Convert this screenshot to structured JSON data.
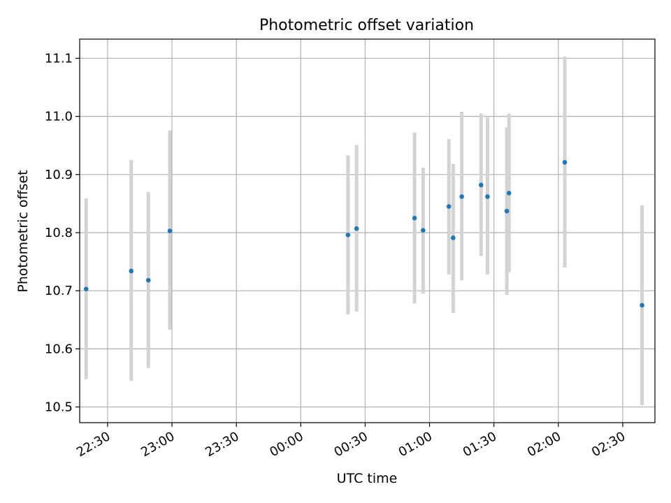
{
  "chart_data": {
    "type": "scatter",
    "title": "Photometric offset variation",
    "xlabel": "UTC time",
    "ylabel": "Photometric offset",
    "x_axis_kind": "time",
    "xlim": [
      "22:17",
      "02:45"
    ],
    "ylim": [
      10.473,
      11.133
    ],
    "x_ticks": [
      "22:30",
      "23:00",
      "23:30",
      "00:00",
      "00:30",
      "01:00",
      "01:30",
      "02:00",
      "02:30"
    ],
    "y_ticks": [
      "10.5",
      "10.6",
      "10.7",
      "10.8",
      "10.9",
      "11.0",
      "11.1"
    ],
    "y_tick_values": [
      10.5,
      10.6,
      10.7,
      10.8,
      10.9,
      11.0,
      11.1
    ],
    "grid": true,
    "colors": {
      "point": "#1f77b4",
      "errorbar": "#d3d3d3",
      "grid": "#b0b0b0"
    },
    "series": [
      {
        "points": [
          {
            "x": "22:20",
            "y": 10.703,
            "ylow": 10.548,
            "yhigh": 10.859
          },
          {
            "x": "22:41",
            "y": 10.734,
            "ylow": 10.545,
            "yhigh": 10.925
          },
          {
            "x": "22:49",
            "y": 10.718,
            "ylow": 10.567,
            "yhigh": 10.87
          },
          {
            "x": "22:59",
            "y": 10.803,
            "ylow": 10.633,
            "yhigh": 10.976
          },
          {
            "x": "00:22",
            "y": 10.796,
            "ylow": 10.659,
            "yhigh": 10.933
          },
          {
            "x": "00:26",
            "y": 10.807,
            "ylow": 10.664,
            "yhigh": 10.951
          },
          {
            "x": "00:53",
            "y": 10.825,
            "ylow": 10.678,
            "yhigh": 10.972
          },
          {
            "x": "00:57",
            "y": 10.804,
            "ylow": 10.695,
            "yhigh": 10.912
          },
          {
            "x": "01:09",
            "y": 10.845,
            "ylow": 10.728,
            "yhigh": 10.961
          },
          {
            "x": "01:11",
            "y": 10.791,
            "ylow": 10.662,
            "yhigh": 10.918
          },
          {
            "x": "01:15",
            "y": 10.862,
            "ylow": 10.718,
            "yhigh": 11.008
          },
          {
            "x": "01:24",
            "y": 10.882,
            "ylow": 10.76,
            "yhigh": 11.005
          },
          {
            "x": "01:27",
            "y": 10.862,
            "ylow": 10.728,
            "yhigh": 10.998
          },
          {
            "x": "01:36",
            "y": 10.837,
            "ylow": 10.693,
            "yhigh": 10.981
          },
          {
            "x": "01:37",
            "y": 10.868,
            "ylow": 10.732,
            "yhigh": 11.005
          },
          {
            "x": "02:03",
            "y": 10.921,
            "ylow": 10.74,
            "yhigh": 11.103
          },
          {
            "x": "02:39",
            "y": 10.675,
            "ylow": 10.503,
            "yhigh": 10.847
          }
        ]
      }
    ]
  }
}
